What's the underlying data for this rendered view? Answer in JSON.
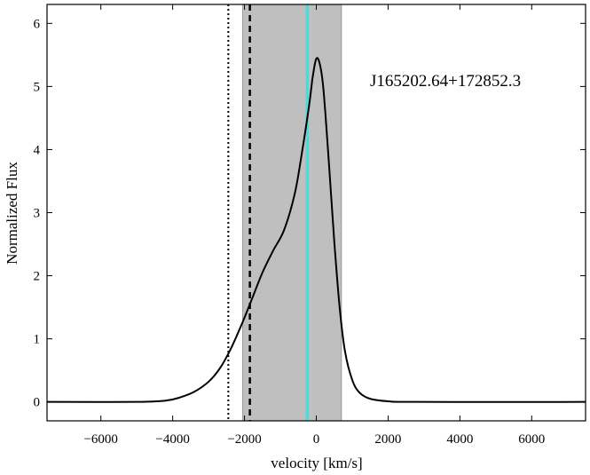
{
  "chart_data": {
    "type": "line",
    "title": "",
    "xlabel": "velocity [km/s]",
    "ylabel": "Normalized Flux",
    "xlim": [
      -7500,
      7500
    ],
    "ylim": [
      -0.3,
      6.3
    ],
    "xticks": [
      -6000,
      -4000,
      -2000,
      0,
      2000,
      4000,
      6000
    ],
    "xtick_labels": [
      "−6000",
      "−4000",
      "−2000",
      "0",
      "2000",
      "4000",
      "6000"
    ],
    "yticks": [
      0,
      1,
      2,
      3,
      4,
      5,
      6
    ],
    "ytick_labels": [
      "0",
      "1",
      "2",
      "3",
      "4",
      "5",
      "6"
    ],
    "grid": false,
    "annotation": "J165202.64+172852.3",
    "shaded_region": {
      "x": [
        -2050,
        700
      ],
      "color": "#bfbfbf"
    },
    "vertical_lines": [
      {
        "x": -2450,
        "style": "dotted",
        "color": "#000000"
      },
      {
        "x": -1850,
        "style": "dashed",
        "color": "#000000"
      },
      {
        "x": -250,
        "style": "solid",
        "color": "#40e0e0"
      }
    ],
    "series": [
      {
        "color": "#000000",
        "x": [
          -7500,
          -5000,
          -4200,
          -3800,
          -3400,
          -3000,
          -2700,
          -2400,
          -2100,
          -1800,
          -1500,
          -1200,
          -900,
          -600,
          -400,
          -200,
          -100,
          0,
          100,
          200,
          350,
          500,
          650,
          800,
          1000,
          1200,
          1500,
          2000,
          2800,
          7500
        ],
        "y": [
          0,
          0,
          0.02,
          0.07,
          0.16,
          0.32,
          0.52,
          0.82,
          1.2,
          1.62,
          2.05,
          2.4,
          2.72,
          3.3,
          3.95,
          4.7,
          5.15,
          5.44,
          5.35,
          4.95,
          3.8,
          2.55,
          1.5,
          0.8,
          0.35,
          0.15,
          0.05,
          0.01,
          0,
          0
        ]
      }
    ]
  }
}
